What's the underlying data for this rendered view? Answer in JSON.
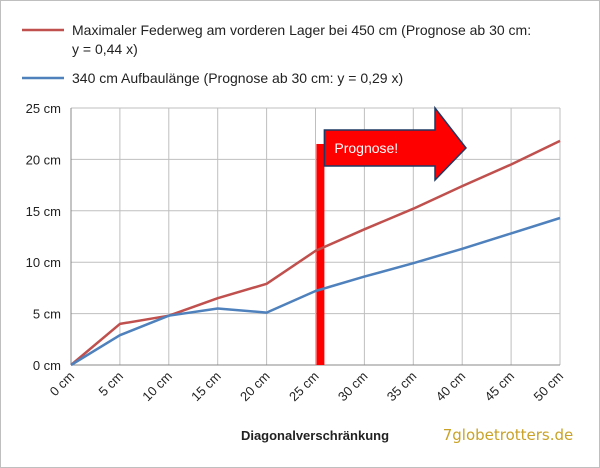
{
  "chart_data": {
    "type": "line",
    "title": "",
    "xlabel": "Diagonalverschränkung",
    "ylabel": "",
    "categories": [
      "0 cm",
      "5 cm",
      "10 cm",
      "15 cm",
      "20 cm",
      "25 cm",
      "30 cm",
      "35 cm",
      "40 cm",
      "45 cm",
      "50 cm"
    ],
    "x": [
      0,
      5,
      10,
      15,
      20,
      25,
      30,
      35,
      40,
      45,
      50
    ],
    "ylim": [
      0,
      25
    ],
    "yticks": [
      0,
      5,
      10,
      15,
      20,
      25
    ],
    "ytick_labels": [
      "0 cm",
      "5 cm",
      "10 cm",
      "15 cm",
      "20 cm",
      "25 cm"
    ],
    "grid": true,
    "legend_position": "top-left",
    "series": [
      {
        "name": "Maximaler Federweg am vorderen Lager bei 450 cm (Prognose ab 30 cm:",
        "name_line2": "y = 0,44 x)",
        "color": "#c0504d",
        "values": [
          0,
          4.0,
          4.8,
          6.5,
          7.9,
          11.1,
          13.2,
          15.2,
          17.4,
          19.5,
          21.8
        ]
      },
      {
        "name": "340 cm Aufbaulänge (Prognose ab 30 cm: y = 0,29 x)",
        "color": "#4f81bd",
        "values": [
          0,
          2.9,
          4.8,
          5.5,
          5.1,
          7.2,
          8.6,
          9.9,
          11.3,
          12.8,
          14.3
        ]
      }
    ],
    "annotation": {
      "label": "Prognose!",
      "marker_x": 25.5,
      "marker_top": 21.5,
      "marker_color": "#ff0000",
      "arrow_color": "#ff0000",
      "arrow_outline": "#1f3864"
    }
  },
  "watermark": "7globetrotters.de"
}
